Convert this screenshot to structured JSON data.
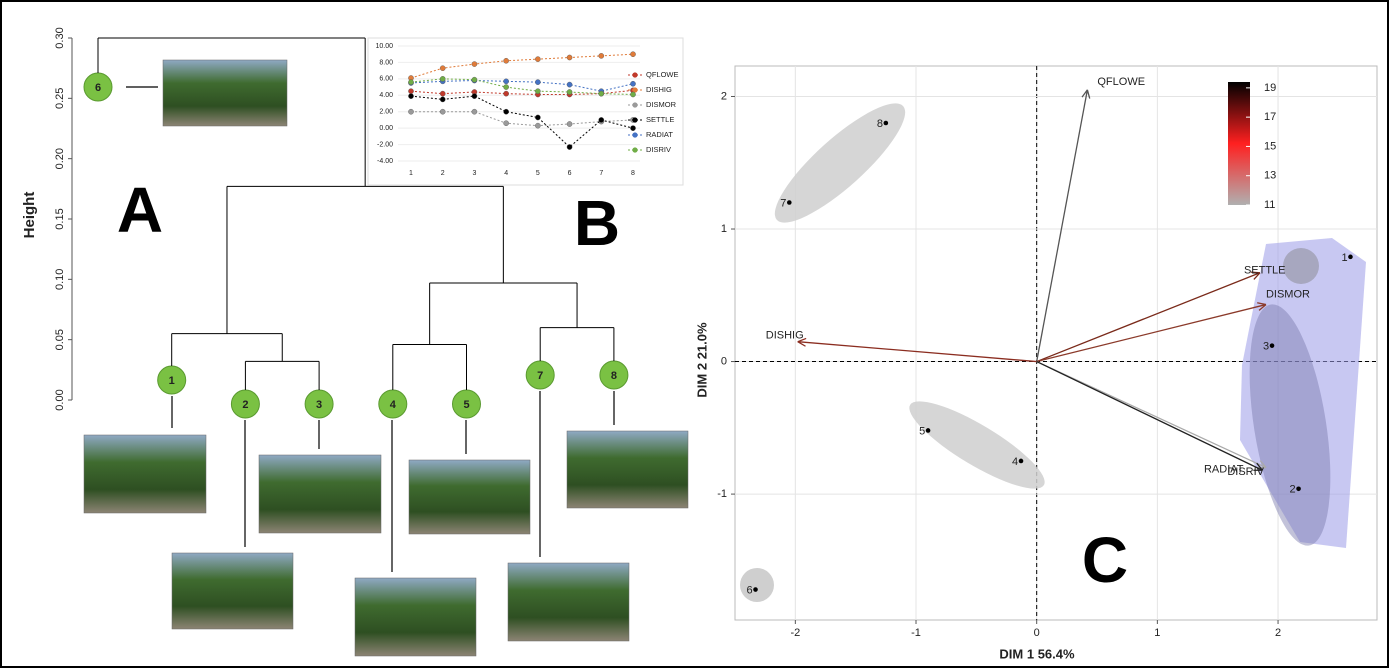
{
  "chart_data": [
    {
      "type": "dendrogram",
      "panel_label": "A",
      "y_label": "Height",
      "ylim": [
        0,
        0.3
      ],
      "yticks": [
        {
          "value": 0,
          "label": "0.00"
        },
        {
          "value": 0.05,
          "label": "0.05"
        },
        {
          "value": 0.1,
          "label": "0.10"
        },
        {
          "value": 0.15,
          "label": "0.15"
        },
        {
          "value": 0.2,
          "label": "0.20"
        },
        {
          "value": 0.25,
          "label": "0.25"
        },
        {
          "value": 0.3,
          "label": "0.30"
        }
      ],
      "color": "#7ac143",
      "tree": {
        "height": 0.3,
        "children": [
          {
            "label": "6"
          },
          {
            "height": 0.177,
            "children": [
              {
                "height": 0.055,
                "children": [
                  {
                    "label": "1"
                  },
                  {
                    "height": 0.032,
                    "children": [
                      {
                        "label": "2"
                      },
                      {
                        "label": "3"
                      }
                    ]
                  }
                ]
              },
              {
                "height": 0.097,
                "children": [
                  {
                    "height": 0.046,
                    "children": [
                      {
                        "label": "4"
                      },
                      {
                        "label": "5"
                      }
                    ]
                  },
                  {
                    "height": 0.06,
                    "children": [
                      {
                        "label": "7"
                      },
                      {
                        "label": "8"
                      }
                    ]
                  }
                ]
              }
            ]
          }
        ]
      }
    },
    {
      "type": "line",
      "panel_label": "B",
      "categories": [
        "1",
        "2",
        "3",
        "4",
        "5",
        "6",
        "7",
        "8"
      ],
      "ylim": [
        -4,
        10
      ],
      "yticks": [
        {
          "value": -4,
          "label": "-4.00"
        },
        {
          "value": -2,
          "label": "-2.00"
        },
        {
          "value": 0,
          "label": "0.00"
        },
        {
          "value": 2,
          "label": "2.00"
        },
        {
          "value": 4,
          "label": "4.00"
        },
        {
          "value": 6,
          "label": "6.00"
        },
        {
          "value": 8,
          "label": "8.00"
        },
        {
          "value": 10,
          "label": "10.00"
        }
      ],
      "series": [
        {
          "name": "QFLOWE",
          "color": "#c0392b",
          "values": [
            4.5,
            4.2,
            4.4,
            4.2,
            4.1,
            4.1,
            4.2,
            4.6
          ]
        },
        {
          "name": "DISHIG",
          "color": "#e07b39",
          "values": [
            6.1,
            7.3,
            7.8,
            8.2,
            8.4,
            8.6,
            8.8,
            9.0
          ]
        },
        {
          "name": "DISMOR",
          "color": "#9a9a9a",
          "values": [
            2.0,
            2.0,
            2.0,
            0.6,
            0.3,
            0.5,
            0.8,
            1.0
          ]
        },
        {
          "name": "SETTLE",
          "color": "#000000",
          "values": [
            3.9,
            3.5,
            3.9,
            2.0,
            1.3,
            -2.3,
            1.0,
            0.0
          ]
        },
        {
          "name": "RADIAT",
          "color": "#4472c4",
          "values": [
            5.5,
            5.7,
            5.8,
            5.7,
            5.6,
            5.3,
            4.5,
            5.4
          ]
        },
        {
          "name": "DISRIV",
          "color": "#70ad47",
          "values": [
            5.6,
            6.0,
            5.9,
            5.0,
            4.5,
            4.4,
            4.2,
            4.1
          ]
        }
      ]
    },
    {
      "type": "biplot",
      "panel_label": "C",
      "x_label": "DIM 1 56.4%",
      "y_label": "DIM 2 21.0%",
      "xlim": [
        -2.5,
        2.82
      ],
      "ylim": [
        -1.95,
        2.23
      ],
      "xticks": [
        -2,
        -1,
        0,
        1,
        2
      ],
      "yticks": [
        -1,
        0,
        1,
        2
      ],
      "grid": true,
      "points": {
        "labels": [
          "1",
          "2",
          "3",
          "4",
          "5",
          "6",
          "7",
          "8"
        ],
        "x": [
          2.6,
          2.17,
          1.95,
          -0.13,
          -0.9,
          -2.33,
          -2.05,
          -1.25
        ],
        "y": [
          0.79,
          -0.96,
          0.12,
          -0.75,
          -0.52,
          -1.72,
          1.2,
          1.8
        ]
      },
      "vectors": [
        {
          "name": "QFLOWE",
          "color": "#555555",
          "x": 0.42,
          "y": 2.05
        },
        {
          "name": "SETTLE",
          "color": "#7a2a1a",
          "x": 1.85,
          "y": 0.67
        },
        {
          "name": "DISMOR",
          "color": "#8b3a2a",
          "x": 1.9,
          "y": 0.43
        },
        {
          "name": "DISHIG",
          "color": "#8b2d20",
          "x": -1.98,
          "y": 0.15
        },
        {
          "name": "RADIAT",
          "color": "#aaaaaa",
          "x": 1.9,
          "y": -0.8
        },
        {
          "name": "DISRIV",
          "color": "#222222",
          "x": 1.87,
          "y": -0.82
        }
      ],
      "colorbar": {
        "lim": [
          11,
          19.4
        ],
        "ticks": [
          11,
          13,
          15,
          17,
          19
        ],
        "colors": [
          "#b0b0b0",
          "#ff2020",
          "#000000"
        ]
      }
    }
  ]
}
